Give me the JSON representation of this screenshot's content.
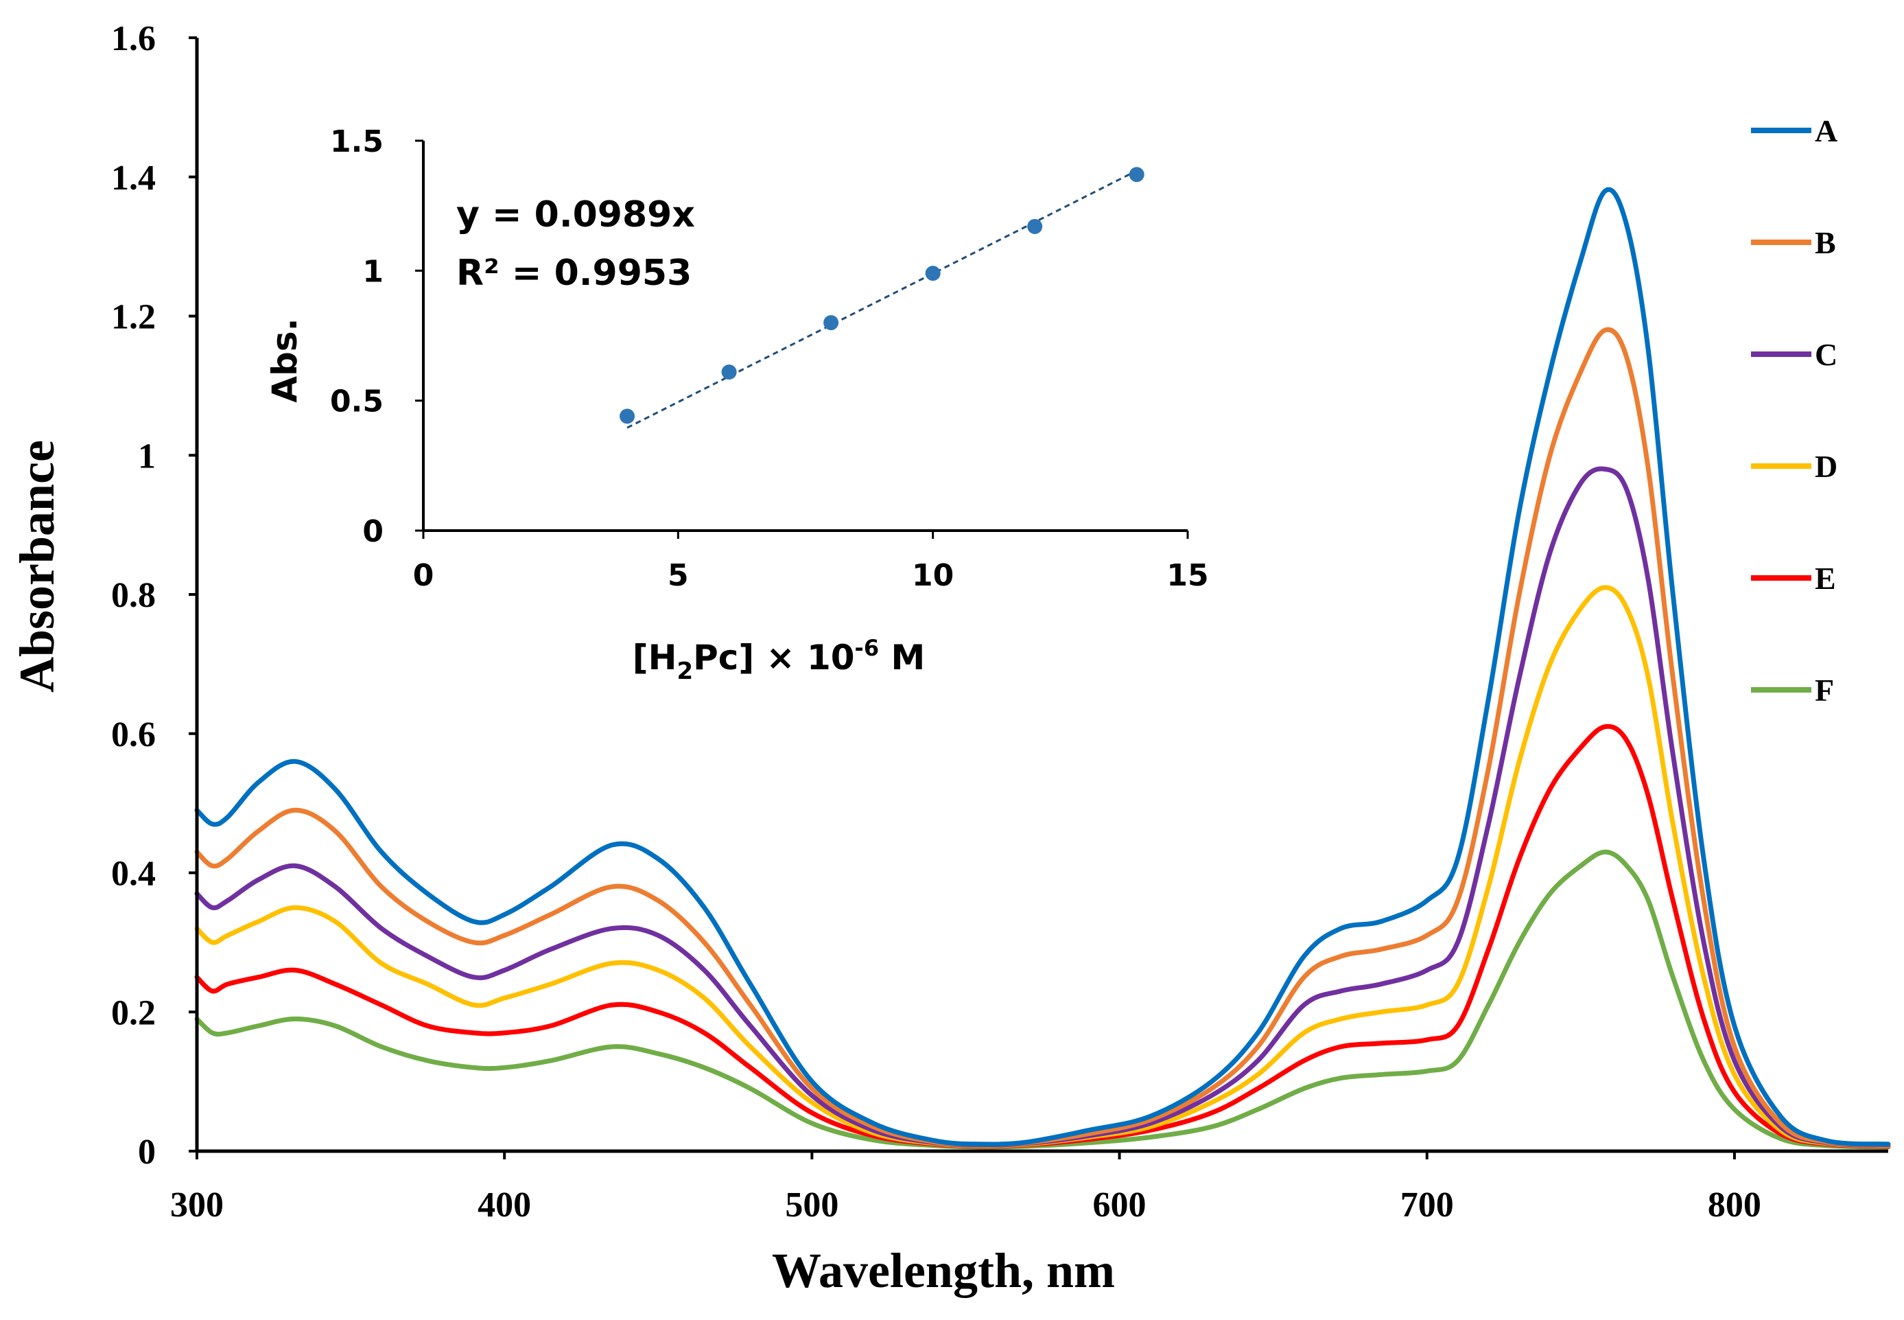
{
  "chart_data": [
    {
      "type": "line",
      "xlabel": "Wavelength, nm",
      "ylabel": "Absorbance",
      "xlim": [
        300,
        850
      ],
      "ylim": [
        0,
        1.6
      ],
      "xticks": [
        "300",
        "400",
        "500",
        "600",
        "700",
        "800"
      ],
      "yticks": [
        "0",
        "0.2",
        "0.4",
        "0.6",
        "0.8",
        "1",
        "1.2",
        "1.4",
        "1.6"
      ],
      "legend_position": "right",
      "x": [
        300,
        305,
        310,
        320,
        332,
        345,
        360,
        375,
        390,
        400,
        415,
        435,
        450,
        465,
        480,
        500,
        520,
        540,
        555,
        570,
        590,
        610,
        630,
        645,
        660,
        672,
        685,
        700,
        710,
        720,
        730,
        740,
        750,
        758,
        765,
        772,
        780,
        790,
        800,
        815,
        830,
        850
      ],
      "series": [
        {
          "name": "A",
          "color": "#0070C0",
          "values": [
            0.49,
            0.47,
            0.48,
            0.53,
            0.56,
            0.52,
            0.43,
            0.37,
            0.33,
            0.34,
            0.38,
            0.44,
            0.42,
            0.35,
            0.24,
            0.1,
            0.04,
            0.015,
            0.01,
            0.013,
            0.03,
            0.05,
            0.1,
            0.17,
            0.28,
            0.32,
            0.33,
            0.36,
            0.42,
            0.65,
            0.92,
            1.12,
            1.28,
            1.38,
            1.33,
            1.15,
            0.8,
            0.42,
            0.18,
            0.05,
            0.015,
            0.01
          ]
        },
        {
          "name": "B",
          "color": "#ED7D31",
          "values": [
            0.43,
            0.41,
            0.42,
            0.46,
            0.49,
            0.46,
            0.38,
            0.33,
            0.3,
            0.31,
            0.34,
            0.38,
            0.36,
            0.3,
            0.21,
            0.09,
            0.035,
            0.013,
            0.01,
            0.012,
            0.025,
            0.045,
            0.09,
            0.15,
            0.25,
            0.28,
            0.29,
            0.31,
            0.36,
            0.55,
            0.8,
            1.0,
            1.12,
            1.18,
            1.14,
            0.98,
            0.68,
            0.36,
            0.15,
            0.04,
            0.013,
            0.01
          ]
        },
        {
          "name": "C",
          "color": "#7030A0",
          "values": [
            0.37,
            0.35,
            0.36,
            0.39,
            0.41,
            0.38,
            0.32,
            0.28,
            0.25,
            0.26,
            0.29,
            0.32,
            0.31,
            0.26,
            0.18,
            0.08,
            0.03,
            0.012,
            0.009,
            0.011,
            0.022,
            0.04,
            0.08,
            0.13,
            0.21,
            0.23,
            0.24,
            0.26,
            0.3,
            0.47,
            0.68,
            0.86,
            0.96,
            0.98,
            0.95,
            0.82,
            0.57,
            0.3,
            0.13,
            0.035,
            0.012,
            0.009
          ]
        },
        {
          "name": "D",
          "color": "#FFC000",
          "values": [
            0.32,
            0.3,
            0.31,
            0.33,
            0.35,
            0.33,
            0.27,
            0.24,
            0.21,
            0.22,
            0.24,
            0.27,
            0.26,
            0.22,
            0.15,
            0.07,
            0.026,
            0.011,
            0.008,
            0.01,
            0.02,
            0.035,
            0.07,
            0.11,
            0.17,
            0.19,
            0.2,
            0.21,
            0.24,
            0.38,
            0.56,
            0.7,
            0.78,
            0.81,
            0.78,
            0.68,
            0.47,
            0.25,
            0.11,
            0.03,
            0.011,
            0.008
          ]
        },
        {
          "name": "E",
          "color": "#FF0000",
          "values": [
            0.25,
            0.23,
            0.24,
            0.25,
            0.26,
            0.24,
            0.21,
            0.18,
            0.17,
            0.17,
            0.18,
            0.21,
            0.2,
            0.17,
            0.12,
            0.055,
            0.022,
            0.01,
            0.007,
            0.009,
            0.017,
            0.03,
            0.055,
            0.09,
            0.13,
            0.15,
            0.155,
            0.16,
            0.18,
            0.29,
            0.42,
            0.52,
            0.58,
            0.61,
            0.59,
            0.51,
            0.36,
            0.19,
            0.085,
            0.025,
            0.01,
            0.007
          ]
        },
        {
          "name": "F",
          "color": "#70AD47",
          "values": [
            0.19,
            0.17,
            0.17,
            0.18,
            0.19,
            0.18,
            0.15,
            0.13,
            0.12,
            0.12,
            0.13,
            0.15,
            0.14,
            0.12,
            0.09,
            0.04,
            0.016,
            0.008,
            0.006,
            0.007,
            0.012,
            0.02,
            0.035,
            0.06,
            0.09,
            0.105,
            0.11,
            0.115,
            0.13,
            0.21,
            0.3,
            0.37,
            0.41,
            0.43,
            0.41,
            0.36,
            0.25,
            0.13,
            0.06,
            0.018,
            0.008,
            0.006
          ]
        }
      ]
    },
    {
      "type": "scatter",
      "xlabel_main": "[H",
      "xlabel_sub": "2",
      "xlabel_mid": "Pc] × 10",
      "xlabel_sup": "-6",
      "xlabel_end": " M",
      "ylabel": "Abs.",
      "xlim": [
        0,
        15
      ],
      "ylim": [
        0,
        1.5
      ],
      "xticks": [
        "0",
        "5",
        "10",
        "15"
      ],
      "yticks": [
        "0",
        "0.5",
        "1",
        "1.5"
      ],
      "marker_color": "#2E75B6",
      "trend_color": "#1F4E79",
      "x": [
        4,
        6,
        8,
        10,
        12,
        14
      ],
      "y": [
        0.44,
        0.61,
        0.8,
        0.99,
        1.17,
        1.37
      ],
      "trendline": {
        "slope": 0.0989,
        "intercept": 0,
        "x_range": [
          4,
          14
        ]
      },
      "equation": "y = 0.0989x",
      "r2_label": "R² = 0.9953"
    }
  ]
}
